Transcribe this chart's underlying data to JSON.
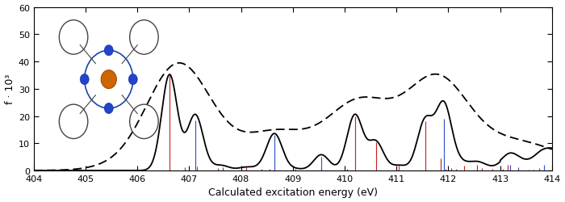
{
  "xlim": [
    404,
    414
  ],
  "ylim": [
    0,
    60
  ],
  "yticks": [
    0,
    10,
    20,
    30,
    40,
    50,
    60
  ],
  "xticks": [
    404,
    405,
    406,
    407,
    408,
    409,
    410,
    411,
    412,
    413,
    414
  ],
  "xlabel": "Calculated excitation energy (eV)",
  "ylabel": "f · 10³",
  "background_color": "#ffffff",
  "solid_line_color": "#000000",
  "dashed_line_color": "#000000",
  "red_bar_color": "#cc2222",
  "blue_bar_color": "#3355cc",
  "red_sticks": [
    [
      406.62,
      35.0
    ],
    [
      406.92,
      1.2
    ],
    [
      407.15,
      1.5
    ],
    [
      407.55,
      0.8
    ],
    [
      408.1,
      1.2
    ],
    [
      408.4,
      0.6
    ],
    [
      408.55,
      0.5
    ],
    [
      409.05,
      0.6
    ],
    [
      409.55,
      0.8
    ],
    [
      410.05,
      0.6
    ],
    [
      410.2,
      20.0
    ],
    [
      410.6,
      10.5
    ],
    [
      411.05,
      1.8
    ],
    [
      411.55,
      18.0
    ],
    [
      411.85,
      4.5
    ],
    [
      411.95,
      0.6
    ],
    [
      412.05,
      0.8
    ],
    [
      412.15,
      0.7
    ],
    [
      412.3,
      1.8
    ],
    [
      412.55,
      2.2
    ],
    [
      412.65,
      0.8
    ],
    [
      412.85,
      0.5
    ],
    [
      413.05,
      0.5
    ],
    [
      413.15,
      2.2
    ],
    [
      413.35,
      0.4
    ],
    [
      413.55,
      0.4
    ],
    [
      413.65,
      0.4
    ],
    [
      413.75,
      0.8
    ],
    [
      413.85,
      0.4
    ],
    [
      413.95,
      0.4
    ]
  ],
  "blue_sticks": [
    [
      407.12,
      18.5
    ],
    [
      407.65,
      1.2
    ],
    [
      408.65,
      13.0
    ],
    [
      409.55,
      5.0
    ],
    [
      411.92,
      19.0
    ],
    [
      413.2,
      2.2
    ],
    [
      413.35,
      1.2
    ],
    [
      413.85,
      2.2
    ]
  ],
  "sigma_solid": 0.15,
  "sigma_dashed": 0.55,
  "dashed_scale": 0.72,
  "dashed_bg_start": 405.2,
  "dashed_bg_amp": 2.0,
  "dashed_bg_rate": 0.55,
  "solid_rise_start": 413.0,
  "solid_rise_amp": 0.5,
  "solid_rise_rate": 2.5
}
